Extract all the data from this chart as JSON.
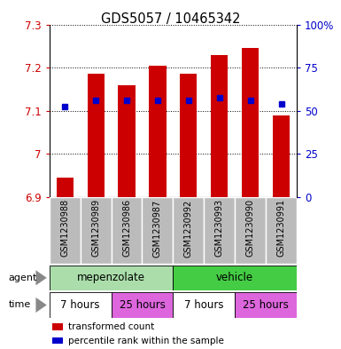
{
  "title": "GDS5057 / 10465342",
  "samples": [
    "GSM1230988",
    "GSM1230989",
    "GSM1230986",
    "GSM1230987",
    "GSM1230992",
    "GSM1230993",
    "GSM1230990",
    "GSM1230991"
  ],
  "bar_values": [
    6.945,
    7.185,
    7.16,
    7.205,
    7.185,
    7.23,
    7.245,
    7.09
  ],
  "bar_bottom": 6.9,
  "percentile_values": [
    7.11,
    7.125,
    7.125,
    7.125,
    7.125,
    7.13,
    7.125,
    7.115
  ],
  "ylim": [
    6.9,
    7.3
  ],
  "yticks": [
    6.9,
    7.0,
    7.1,
    7.2,
    7.3
  ],
  "ytick_labels": [
    "6.9",
    "7",
    "7.1",
    "7.2",
    "7.3"
  ],
  "y2ticks": [
    0,
    25,
    50,
    75,
    100
  ],
  "y2tick_labels": [
    "0",
    "25",
    "50",
    "75",
    "100%"
  ],
  "bar_color": "#cc0000",
  "percentile_color": "#0000cc",
  "agent_groups": [
    {
      "label": "mepenzolate",
      "span": [
        0,
        4
      ],
      "color": "#aaddaa"
    },
    {
      "label": "vehicle",
      "span": [
        4,
        8
      ],
      "color": "#44cc44"
    }
  ],
  "time_groups": [
    {
      "label": "7 hours",
      "span": [
        0,
        2
      ],
      "color": "#ffffff"
    },
    {
      "label": "25 hours",
      "span": [
        2,
        4
      ],
      "color": "#dd66dd"
    },
    {
      "label": "7 hours",
      "span": [
        4,
        6
      ],
      "color": "#ffffff"
    },
    {
      "label": "25 hours",
      "span": [
        6,
        8
      ],
      "color": "#dd66dd"
    }
  ],
  "legend_items": [
    {
      "label": "transformed count",
      "color": "#cc0000"
    },
    {
      "label": "percentile rank within the sample",
      "color": "#0000cc"
    }
  ],
  "agent_label": "agent",
  "time_label": "time",
  "sample_bg_color": "#bbbbbb",
  "tick_label_color_left": "#cc0000",
  "tick_label_color_right": "#0000cc"
}
